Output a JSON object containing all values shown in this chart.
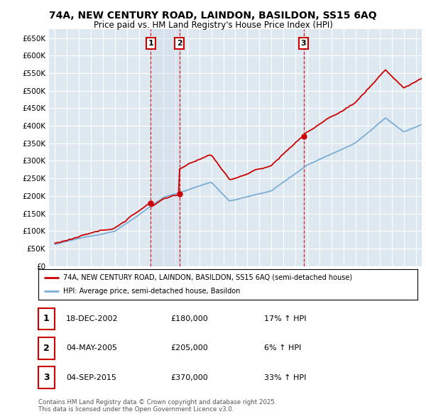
{
  "title": "74A, NEW CENTURY ROAD, LAINDON, BASILDON, SS15 6AQ",
  "subtitle": "Price paid vs. HM Land Registry's House Price Index (HPI)",
  "background_color": "#dde8f0",
  "ylim": [
    0,
    675000
  ],
  "yticks": [
    0,
    50000,
    100000,
    150000,
    200000,
    250000,
    300000,
    350000,
    400000,
    450000,
    500000,
    550000,
    600000,
    650000
  ],
  "ytick_labels": [
    "£0",
    "£50K",
    "£100K",
    "£150K",
    "£200K",
    "£250K",
    "£300K",
    "£350K",
    "£400K",
    "£450K",
    "£500K",
    "£550K",
    "£600K",
    "£650K"
  ],
  "xlim_start": 1994.5,
  "xlim_end": 2025.5,
  "sale_dates": [
    2002.96,
    2005.34,
    2015.67
  ],
  "sale_prices": [
    180000,
    205000,
    370000
  ],
  "sale_labels": [
    "1",
    "2",
    "3"
  ],
  "red_color": "#cc0000",
  "blue_color": "#7aaed6",
  "legend_line1": "74A, NEW CENTURY ROAD, LAINDON, BASILDON, SS15 6AQ (semi-detached house)",
  "legend_line2": "HPI: Average price, semi-detached house, Basildon",
  "table_entries": [
    {
      "num": "1",
      "date": "18-DEC-2002",
      "price": "£180,000",
      "change": "17% ↑ HPI"
    },
    {
      "num": "2",
      "date": "04-MAY-2005",
      "price": "£205,000",
      "change": "6% ↑ HPI"
    },
    {
      "num": "3",
      "date": "04-SEP-2015",
      "price": "£370,000",
      "change": "33% ↑ HPI"
    }
  ],
  "footer_text": "Contains HM Land Registry data © Crown copyright and database right 2025.\nThis data is licensed under the Open Government Licence v3.0.",
  "vline_color": "#cc0000",
  "shade_color": "#ccd8e8"
}
